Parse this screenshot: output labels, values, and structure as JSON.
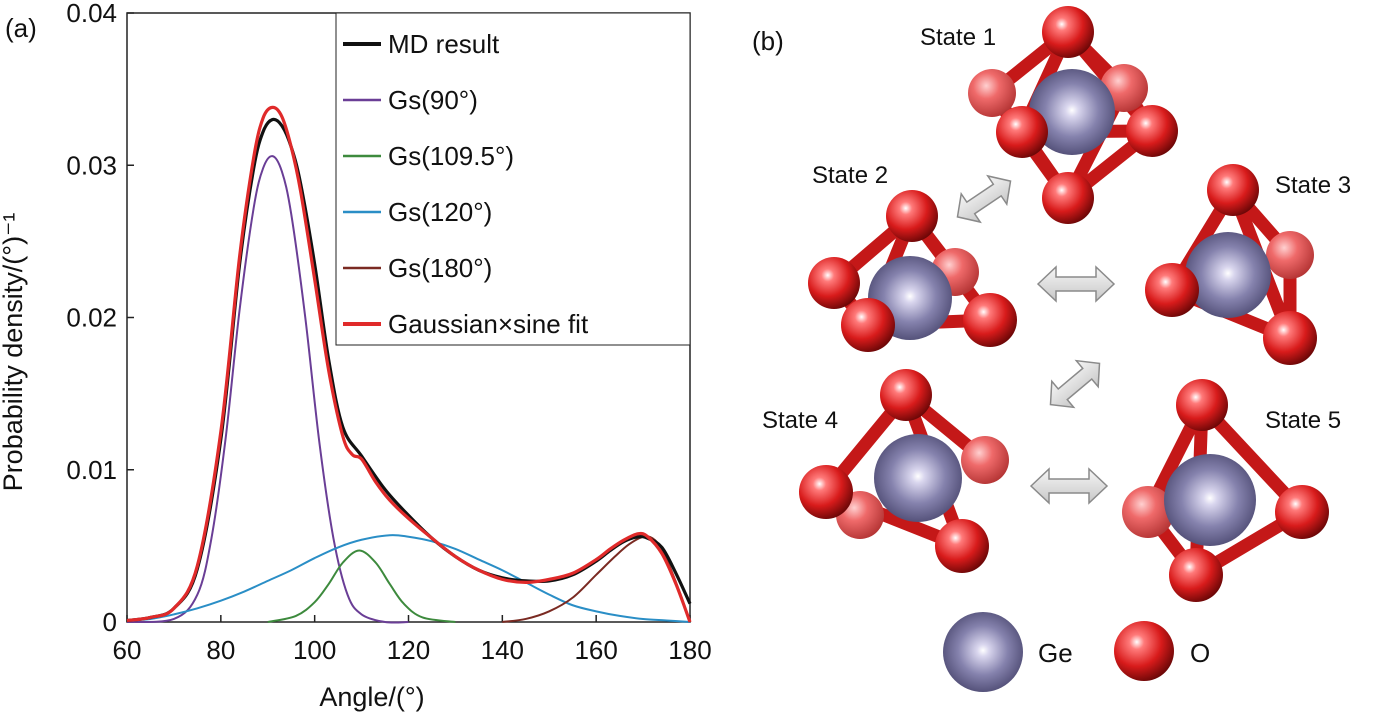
{
  "panel_a_label": "(a)",
  "panel_b_label": "(b)",
  "chart_data": {
    "type": "line",
    "xlabel": "Angle/(°)",
    "ylabel": "Probability density/(°)⁻¹",
    "xlim": [
      60,
      180
    ],
    "ylim": [
      0,
      0.04
    ],
    "xticks": [
      "60",
      "80",
      "100",
      "120",
      "140",
      "160",
      "180"
    ],
    "yticks": [
      "0",
      "0.01",
      "0.02",
      "0.03",
      "0.04"
    ],
    "legend_position": "top-right",
    "series": [
      {
        "name": "MD result",
        "color": "#111111",
        "x": [
          60,
          65,
          70,
          75,
          80,
          84,
          87,
          89,
          91,
          93,
          95,
          97,
          100,
          103,
          106,
          110,
          115,
          120,
          125,
          130,
          135,
          140,
          145,
          150,
          155,
          160,
          163,
          166,
          169,
          171,
          174,
          177,
          180
        ],
        "y": [
          0.0001,
          0.0003,
          0.0009,
          0.0035,
          0.012,
          0.0235,
          0.0298,
          0.0322,
          0.033,
          0.0326,
          0.0312,
          0.0288,
          0.0235,
          0.0172,
          0.0128,
          0.0109,
          0.0087,
          0.007,
          0.0055,
          0.0043,
          0.0034,
          0.0029,
          0.0027,
          0.0027,
          0.0031,
          0.004,
          0.0047,
          0.0053,
          0.0056,
          0.0055,
          0.0049,
          0.0032,
          0.0012
        ]
      },
      {
        "name": "Gs(90°)",
        "color": "#6a3e96",
        "x": [
          60,
          70,
          75,
          78,
          81,
          84,
          87,
          89,
          91,
          93,
          95,
          98,
          101,
          104,
          107,
          110,
          115,
          120
        ],
        "y": [
          0,
          0.0002,
          0.0018,
          0.0055,
          0.012,
          0.0205,
          0.0272,
          0.0298,
          0.0306,
          0.0296,
          0.0268,
          0.02,
          0.0118,
          0.0055,
          0.0018,
          0.0005,
          0,
          0
        ]
      },
      {
        "name": "Gs(109.5°)",
        "color": "#3d8a3d",
        "x": [
          90,
          96,
          100,
          103,
          106,
          109.5,
          113,
          116,
          119,
          123,
          130
        ],
        "y": [
          0,
          0.0004,
          0.0013,
          0.0025,
          0.0039,
          0.0047,
          0.0039,
          0.0025,
          0.0012,
          0.0003,
          0
        ]
      },
      {
        "name": "Gs(120°)",
        "color": "#2a8ec6",
        "x": [
          60,
          65,
          70,
          75,
          80,
          85,
          90,
          95,
          100,
          105,
          110,
          116,
          120,
          125,
          130,
          135,
          140,
          145,
          150,
          155,
          160,
          165,
          170,
          175,
          180
        ],
        "y": [
          0.0001,
          0.0002,
          0.0005,
          0.0009,
          0.0014,
          0.002,
          0.0027,
          0.0034,
          0.0042,
          0.0049,
          0.0054,
          0.0057,
          0.0056,
          0.0053,
          0.0048,
          0.0041,
          0.0034,
          0.0026,
          0.0018,
          0.0011,
          0.0007,
          0.0004,
          0.0002,
          0.0001,
          0
        ]
      },
      {
        "name": "Gs(180°)",
        "color": "#7a2a22",
        "x": [
          140,
          145,
          150,
          155,
          160,
          164,
          167,
          170,
          172,
          174,
          176,
          178,
          180
        ],
        "y": [
          0,
          0.0002,
          0.0007,
          0.0016,
          0.0031,
          0.0043,
          0.0051,
          0.0056,
          0.0055,
          0.0048,
          0.0034,
          0.0018,
          0
        ]
      },
      {
        "name": "Gaussian×sine fit",
        "color": "#e02a2a",
        "x": [
          60,
          65,
          70,
          75,
          80,
          84,
          87,
          89,
          91,
          93,
          95,
          97,
          100,
          103,
          106,
          108,
          110,
          113,
          116,
          120,
          125,
          130,
          135,
          140,
          145,
          150,
          155,
          160,
          163,
          166,
          169,
          171,
          174,
          177,
          180
        ],
        "y": [
          0.0001,
          0.0003,
          0.0009,
          0.0037,
          0.0125,
          0.024,
          0.0305,
          0.0331,
          0.0338,
          0.0332,
          0.0312,
          0.0283,
          0.0225,
          0.0165,
          0.0122,
          0.011,
          0.0107,
          0.0092,
          0.008,
          0.0068,
          0.0055,
          0.0043,
          0.0034,
          0.0028,
          0.0026,
          0.0028,
          0.0032,
          0.0041,
          0.0048,
          0.0054,
          0.0058,
          0.0056,
          0.0045,
          0.0025,
          0
        ]
      }
    ]
  },
  "panel_b": {
    "states": [
      "State 1",
      "State 2",
      "State 3",
      "State 4",
      "State 5"
    ],
    "legend": [
      {
        "label": "Ge",
        "color": "#7d7aa3"
      },
      {
        "label": "O",
        "color": "#d61e1e"
      }
    ]
  }
}
